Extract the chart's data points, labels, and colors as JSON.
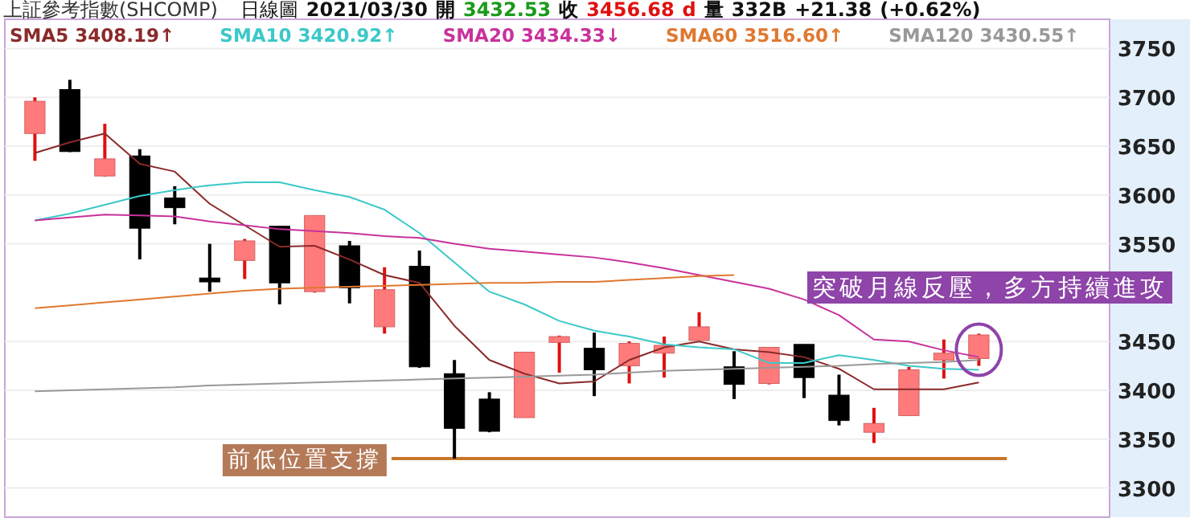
{
  "chart_data": {
    "type": "candlestick",
    "title": "上証參考指數(SHCOMP)",
    "subtitle": "日線圖 2021/03/30 開 3432.53 收 3456.68 d 量 332B +21.38 (+0.62%)",
    "categories": [
      null,
      null,
      null,
      null,
      null,
      null,
      null,
      null,
      null,
      null,
      null,
      null,
      null,
      null,
      null,
      null,
      null,
      null,
      null,
      null,
      null,
      null,
      null,
      null,
      null,
      null,
      null,
      null
    ],
    "ohlc": [
      [
        3663,
        3700,
        3635,
        3696
      ],
      [
        3708,
        3718,
        3644,
        3644.5
      ],
      [
        3619.5,
        3673,
        3619,
        3637
      ],
      [
        3640,
        3647,
        3534,
        3566
      ],
      [
        3597,
        3609,
        3570,
        3587
      ],
      [
        3515,
        3550,
        3501,
        3511
      ],
      [
        3533,
        3555,
        3514,
        3553
      ],
      [
        3568,
        3568,
        3488,
        3510
      ],
      [
        3501,
        3579,
        3500,
        3579
      ],
      [
        3548,
        3553,
        3489,
        3505
      ],
      [
        3465,
        3526,
        3458,
        3503
      ],
      [
        3527,
        3543,
        3423,
        3424
      ],
      [
        3417,
        3431,
        3330,
        3361
      ],
      [
        3391,
        3398,
        3357,
        3358
      ],
      [
        3372,
        3439,
        3372,
        3439
      ],
      [
        3449,
        3456,
        3418,
        3455
      ],
      [
        3443,
        3459,
        3394,
        3421
      ],
      [
        3425,
        3450,
        3407,
        3448
      ],
      [
        3438,
        3455,
        3413,
        3446
      ],
      [
        3451,
        3480,
        3451,
        3465
      ],
      [
        3424,
        3440,
        3391,
        3406
      ],
      [
        3407,
        3444,
        3406,
        3444
      ],
      [
        3447,
        3447,
        3392,
        3413
      ],
      [
        3395,
        3416,
        3364,
        3369
      ],
      [
        3357,
        3382,
        3346,
        3366
      ],
      [
        3374,
        3424,
        3374,
        3421
      ],
      [
        3431,
        3452,
        3412,
        3438
      ],
      [
        3432.53,
        3458,
        3425,
        3456.68
      ]
    ],
    "series": [
      {
        "name": "SMA5 3408.19↑",
        "type": "line",
        "color": "#8b2a2a",
        "values": [
          3643,
          3654,
          3663,
          3632,
          3624,
          3591,
          3569,
          3547,
          3548,
          3534,
          3518,
          3510,
          3466,
          3431,
          3417,
          3407,
          3409,
          3431,
          3444,
          3450,
          3442,
          3439,
          3434,
          3422,
          3401,
          3401,
          3401,
          3408
        ]
      },
      {
        "name": "SMA10 3420.92↑",
        "type": "line",
        "color": "#3cc8c8",
        "values": [
          3574,
          3581,
          3590,
          3599,
          3605,
          3610,
          3613,
          3613,
          3605,
          3598,
          3585,
          3561,
          3531,
          3501,
          3488,
          3471,
          3461,
          3455,
          3447,
          3444,
          3442,
          3428,
          3428,
          3436,
          3431,
          3425,
          3422,
          3421
        ]
      },
      {
        "name": "SMA20 3434.33↓",
        "type": "line",
        "color": "#c8329b",
        "values": [
          3574,
          3577,
          3580,
          3579,
          3578,
          3573,
          3569,
          3565,
          3563,
          3561,
          3558,
          3556,
          3550,
          3545,
          3542,
          3539,
          3536,
          3531,
          3525,
          3518,
          3511,
          3504,
          3493,
          3477,
          3452,
          3450,
          3441,
          3434
        ]
      },
      {
        "name": "SMA60 3516.60↑",
        "type": "line",
        "color": "#e07830",
        "values": [
          3484,
          3487,
          3490,
          3493,
          3496,
          3499,
          3502,
          3504,
          3505,
          3506,
          3507,
          3508,
          3509,
          3510,
          3510,
          3511,
          3511,
          3513,
          3515,
          3517,
          3518,
          null,
          null,
          null,
          null,
          null,
          null,
          null
        ]
      },
      {
        "name": "SMA120 3430.55↑",
        "type": "line",
        "color": "#999999",
        "values": [
          3399,
          3400,
          3401,
          3402,
          3403,
          3405,
          3406,
          3407,
          3408,
          3409,
          3410,
          3411,
          3412,
          3413,
          3414,
          3415,
          3416,
          3418,
          3420,
          3421,
          3422,
          3423,
          3424,
          3425,
          3427,
          3428,
          3429,
          3431
        ]
      }
    ],
    "ylim": [
      3270,
      3780
    ],
    "yticks": [
      3300,
      3350,
      3400,
      3450,
      3550,
      3600,
      3650,
      3700,
      3750
    ],
    "grid": "y",
    "legend": "top",
    "ref_lines": [
      {
        "axis": "y",
        "value": 3330,
        "label": "前低位置支撐",
        "color": "#c8762a"
      }
    ],
    "annotations": [
      "突破月線反壓，多方持續進攻"
    ]
  }
}
